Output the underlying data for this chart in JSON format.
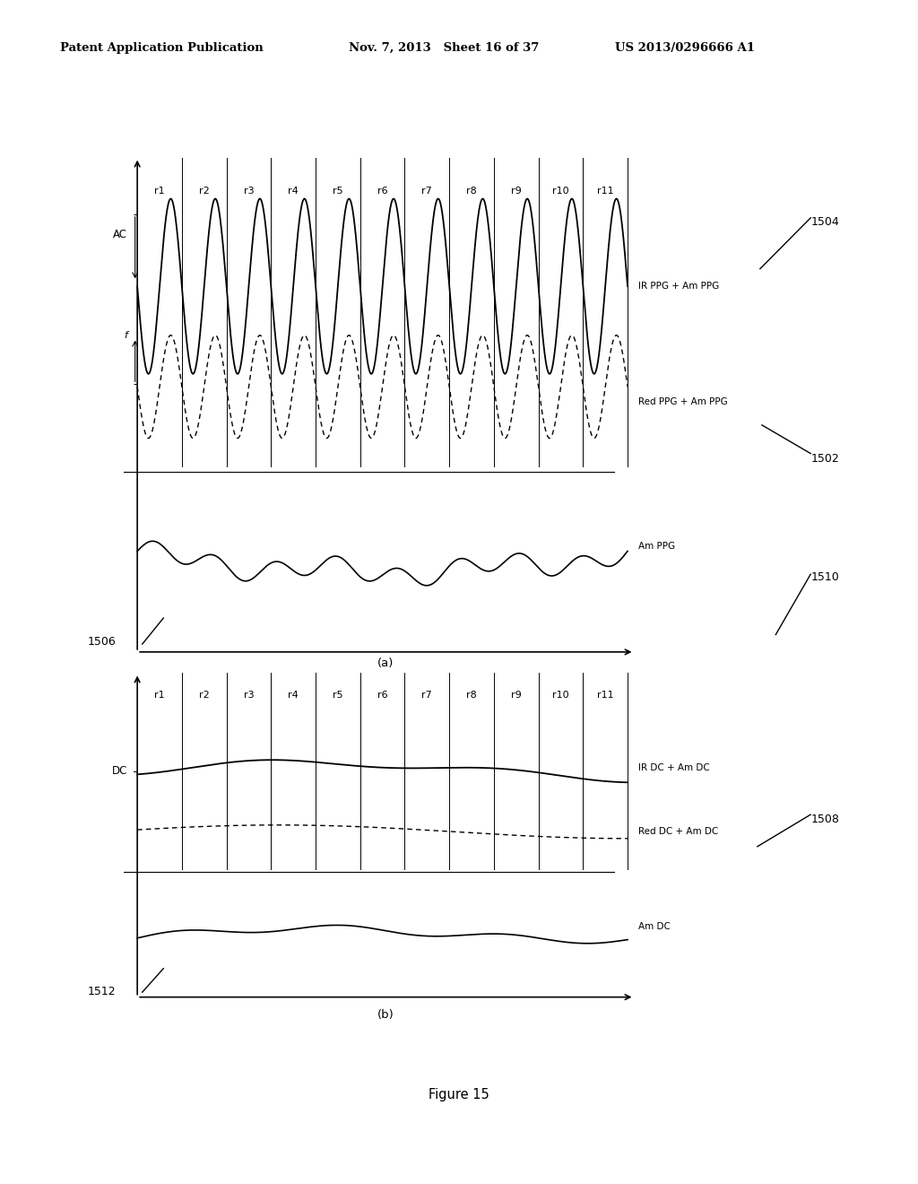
{
  "header_left": "Patent Application Publication",
  "header_mid": "Nov. 7, 2013   Sheet 16 of 37",
  "header_right": "US 2013/0296666 A1",
  "footer": "Figure 15",
  "regions": [
    "r1",
    "r2",
    "r3",
    "r4",
    "r5",
    "r6",
    "r7",
    "r8",
    "r9",
    "r10",
    "r11"
  ],
  "num_regions": 11,
  "subplot_a_label": "(a)",
  "subplot_b_label": "(b)",
  "ac_label": "AC",
  "dc_label": "DC",
  "ir_ppg_label": "IR PPG + Am PPG",
  "red_ppg_label": "Red PPG + Am PPG",
  "am_ppg_label": "Am PPG",
  "ir_dc_label": "IR DC + Am DC",
  "red_dc_label": "Red DC + Am DC",
  "am_dc_label": "Am DC",
  "ref_1504": "1504",
  "ref_1502": "1502",
  "ref_1506": "1506",
  "ref_1510": "1510",
  "ref_1508": "1508",
  "ref_1512": "1512",
  "bg_color": "#ffffff",
  "line_color": "#000000"
}
